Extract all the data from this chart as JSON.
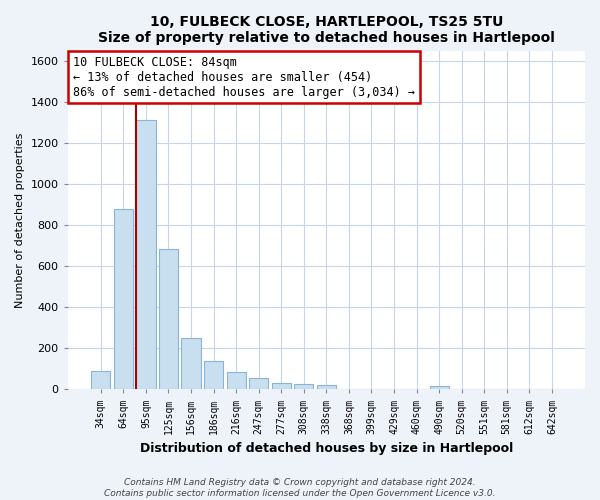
{
  "title": "10, FULBECK CLOSE, HARTLEPOOL, TS25 5TU",
  "subtitle": "Size of property relative to detached houses in Hartlepool",
  "xlabel": "Distribution of detached houses by size in Hartlepool",
  "ylabel": "Number of detached properties",
  "categories": [
    "34sqm",
    "64sqm",
    "95sqm",
    "125sqm",
    "156sqm",
    "186sqm",
    "216sqm",
    "247sqm",
    "277sqm",
    "308sqm",
    "338sqm",
    "368sqm",
    "399sqm",
    "429sqm",
    "460sqm",
    "490sqm",
    "520sqm",
    "551sqm",
    "581sqm",
    "612sqm",
    "642sqm"
  ],
  "values": [
    88,
    880,
    1310,
    685,
    250,
    140,
    85,
    55,
    30,
    25,
    20,
    0,
    0,
    0,
    0,
    15,
    0,
    0,
    0,
    0,
    0
  ],
  "bar_color": "#c8dff0",
  "bar_edge_color": "#8ab4d4",
  "property_line_index": 2,
  "property_line_color": "#aa0000",
  "annotation_title": "10 FULBECK CLOSE: 84sqm",
  "annotation_line1": "← 13% of detached houses are smaller (454)",
  "annotation_line2": "86% of semi-detached houses are larger (3,034) →",
  "annotation_box_color": "white",
  "annotation_box_edge_color": "#cc0000",
  "ylim": [
    0,
    1650
  ],
  "yticks": [
    0,
    200,
    400,
    600,
    800,
    1000,
    1200,
    1400,
    1600
  ],
  "footer_line1": "Contains HM Land Registry data © Crown copyright and database right 2024.",
  "footer_line2": "Contains public sector information licensed under the Open Government Licence v3.0.",
  "bg_color": "#eef2f9",
  "plot_bg_color": "#ffffff",
  "grid_color": "#c8d4e8"
}
